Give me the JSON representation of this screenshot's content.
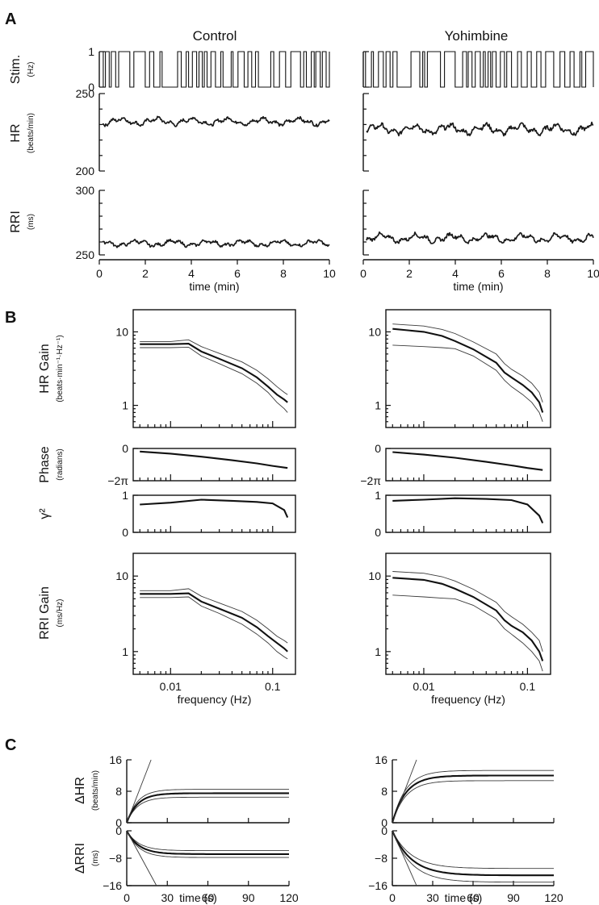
{
  "panels": {
    "A": "A",
    "B": "B",
    "C": "C"
  },
  "columns": [
    "Control",
    "Yohimbine"
  ],
  "chart_data": [
    {
      "id": "A-stim",
      "type": "line",
      "ylabel": "Stim.",
      "yunit": "(Hz)",
      "ylim": [
        0,
        1
      ],
      "yticks": [
        "0",
        "1"
      ],
      "xlim": [
        0,
        10
      ],
      "series": [
        {
          "column": "Control",
          "values": "binary white-noise stimulation sequence between 0 and 1 Hz"
        },
        {
          "column": "Yohimbine",
          "values": "binary white-noise stimulation sequence between 0 and 1 Hz"
        }
      ]
    },
    {
      "id": "A-HR",
      "type": "line",
      "ylabel": "HR",
      "yunit": "(beats/min)",
      "ylim": [
        200,
        250
      ],
      "yticks": [
        "200",
        "250"
      ],
      "xlim": [
        0,
        10
      ],
      "series": [
        {
          "column": "Control",
          "mean": 232,
          "fluctuation": 3
        },
        {
          "column": "Yohimbine",
          "mean": 227,
          "fluctuation": 4
        }
      ]
    },
    {
      "id": "A-RRI",
      "type": "line",
      "ylabel": "RRI",
      "yunit": "(ms)",
      "ylim": [
        250,
        300
      ],
      "yticks": [
        "250",
        "300"
      ],
      "xlim": [
        0,
        10
      ],
      "xticks": [
        "0",
        "2",
        "4",
        "6",
        "8",
        "10"
      ],
      "xlabel": "time (min)",
      "series": [
        {
          "column": "Control",
          "mean": 259,
          "fluctuation": 3
        },
        {
          "column": "Yohimbine",
          "mean": 263,
          "fluctuation": 4
        }
      ]
    },
    {
      "id": "B-HRgain",
      "type": "line",
      "ylabel": "HR Gain",
      "yunit": "(beats·min⁻¹·Hz⁻¹)",
      "yscale": "log",
      "ylim": [
        0.5,
        20
      ],
      "yticks": [
        "1",
        "10"
      ],
      "xscale": "log",
      "xlim": [
        0.0048,
        0.15
      ],
      "series": [
        {
          "column": "Control",
          "x": [
            0.005,
            0.01,
            0.015,
            0.02,
            0.03,
            0.05,
            0.07,
            0.09,
            0.11,
            0.13,
            0.14
          ],
          "mean": [
            6.8,
            6.8,
            6.9,
            5.4,
            4.3,
            3.2,
            2.4,
            1.8,
            1.4,
            1.2,
            1.1
          ],
          "sd_upper": [
            7.4,
            7.4,
            7.8,
            6.3,
            5.1,
            3.9,
            3.0,
            2.3,
            1.8,
            1.5,
            1.4
          ],
          "sd_lower": [
            6.1,
            6.1,
            6.2,
            4.7,
            3.7,
            2.7,
            2.0,
            1.5,
            1.1,
            0.9,
            0.8
          ]
        },
        {
          "column": "Yohimbine",
          "x": [
            0.005,
            0.01,
            0.015,
            0.02,
            0.03,
            0.05,
            0.06,
            0.07,
            0.09,
            0.11,
            0.13,
            0.14
          ],
          "mean": [
            11.0,
            10.0,
            8.8,
            7.5,
            5.8,
            3.8,
            2.8,
            2.4,
            1.9,
            1.5,
            1.1,
            0.8
          ],
          "sd_upper": [
            12.8,
            12.0,
            10.8,
            9.5,
            7.3,
            5.0,
            3.7,
            3.1,
            2.5,
            2.0,
            1.5,
            1.1
          ],
          "sd_lower": [
            6.6,
            6.3,
            6.1,
            5.9,
            4.7,
            3.0,
            2.2,
            1.8,
            1.4,
            1.1,
            0.8,
            0.6
          ]
        }
      ]
    },
    {
      "id": "B-phase",
      "type": "line",
      "ylabel": "Phase",
      "yunit": "(radians)",
      "ylim": [
        -6.283,
        0
      ],
      "yticks": [
        "0",
        "−2π"
      ],
      "xscale": "log",
      "xlim": [
        0.0048,
        0.15
      ],
      "series": [
        {
          "column": "Control",
          "x": [
            0.005,
            0.01,
            0.02,
            0.04,
            0.07,
            0.1,
            0.14
          ],
          "mean": [
            -0.6,
            -1.0,
            -1.6,
            -2.3,
            -2.9,
            -3.4,
            -3.8
          ]
        },
        {
          "column": "Yohimbine",
          "x": [
            0.005,
            0.01,
            0.02,
            0.04,
            0.07,
            0.1,
            0.14
          ],
          "mean": [
            -0.7,
            -1.2,
            -1.8,
            -2.6,
            -3.3,
            -3.8,
            -4.2
          ]
        }
      ]
    },
    {
      "id": "B-coh",
      "type": "line",
      "ylabel": "γ²",
      "ylim": [
        0,
        1
      ],
      "yticks": [
        "0",
        "1"
      ],
      "xscale": "log",
      "xlim": [
        0.0048,
        0.15
      ],
      "series": [
        {
          "column": "Control",
          "x": [
            0.005,
            0.01,
            0.02,
            0.04,
            0.07,
            0.1,
            0.13,
            0.14
          ],
          "mean": [
            0.75,
            0.8,
            0.88,
            0.85,
            0.82,
            0.78,
            0.6,
            0.4
          ]
        },
        {
          "column": "Yohimbine",
          "x": [
            0.005,
            0.01,
            0.02,
            0.04,
            0.07,
            0.1,
            0.13,
            0.14
          ],
          "mean": [
            0.85,
            0.88,
            0.92,
            0.9,
            0.87,
            0.75,
            0.45,
            0.25
          ]
        }
      ]
    },
    {
      "id": "B-RRIgain",
      "type": "line",
      "ylabel": "RRI Gain",
      "yunit": "(ms/Hz)",
      "yscale": "log",
      "ylim": [
        0.5,
        20
      ],
      "yticks": [
        "1",
        "10"
      ],
      "xscale": "log",
      "xlim": [
        0.0048,
        0.15
      ],
      "xticks": [
        "0.01",
        "0.1"
      ],
      "xlabel": "frequency (Hz)",
      "series": [
        {
          "column": "Control",
          "x": [
            0.005,
            0.01,
            0.015,
            0.02,
            0.03,
            0.05,
            0.07,
            0.09,
            0.11,
            0.13,
            0.14
          ],
          "mean": [
            5.8,
            5.8,
            5.9,
            4.6,
            3.7,
            2.8,
            2.1,
            1.6,
            1.3,
            1.1,
            1.0
          ],
          "sd_upper": [
            6.4,
            6.4,
            6.8,
            5.4,
            4.4,
            3.4,
            2.6,
            2.0,
            1.6,
            1.4,
            1.3
          ],
          "sd_lower": [
            5.2,
            5.2,
            5.3,
            4.0,
            3.2,
            2.3,
            1.7,
            1.3,
            1.0,
            0.85,
            0.8
          ]
        },
        {
          "column": "Yohimbine",
          "x": [
            0.005,
            0.01,
            0.015,
            0.02,
            0.03,
            0.05,
            0.06,
            0.07,
            0.09,
            0.11,
            0.13,
            0.14
          ],
          "mean": [
            9.5,
            8.9,
            7.9,
            6.8,
            5.3,
            3.5,
            2.6,
            2.2,
            1.8,
            1.4,
            1.0,
            0.75
          ],
          "sd_upper": [
            11.5,
            10.9,
            9.8,
            8.6,
            6.7,
            4.5,
            3.4,
            2.9,
            2.3,
            1.8,
            1.4,
            1.0
          ],
          "sd_lower": [
            5.6,
            5.3,
            5.1,
            5.0,
            4.1,
            2.7,
            2.0,
            1.7,
            1.3,
            1.0,
            0.75,
            0.55
          ]
        }
      ]
    },
    {
      "id": "C-dHR",
      "type": "line",
      "ylabel": "ΔHR",
      "yunit": "(beats/min)",
      "ylim": [
        0,
        16
      ],
      "yticks": [
        "0",
        "8",
        "16"
      ],
      "xlim": [
        0,
        120
      ],
      "series": [
        {
          "column": "Control",
          "steady": 7.5,
          "tau": 8,
          "band": 1.0,
          "initial_slope_line": {
            "x": [
              0,
              18
            ],
            "y": [
              0,
              16
            ]
          }
        },
        {
          "column": "Yohimbine",
          "steady": 12.0,
          "tau": 10,
          "band": 1.3,
          "initial_slope_line": {
            "x": [
              0,
              18
            ],
            "y": [
              0,
              16
            ]
          }
        }
      ]
    },
    {
      "id": "C-dRRI",
      "type": "line",
      "ylabel": "ΔRRI",
      "yunit": "(ms)",
      "ylim": [
        -16,
        0
      ],
      "yticks": [
        "0",
        "−8",
        "−16"
      ],
      "xlim": [
        0,
        120
      ],
      "xticks": [
        "0",
        "30",
        "60",
        "90",
        "120"
      ],
      "xlabel": "time (s)",
      "series": [
        {
          "column": "Control",
          "steady": -6.8,
          "tau": 9,
          "band": 1.0,
          "initial_slope_line": {
            "x": [
              0,
              22
            ],
            "y": [
              0,
              -16
            ]
          }
        },
        {
          "column": "Yohimbine",
          "steady": -13.0,
          "tau": 14,
          "band": 2.0,
          "initial_slope_line": {
            "x": [
              0,
              18
            ],
            "y": [
              0,
              -16
            ]
          }
        }
      ]
    }
  ]
}
